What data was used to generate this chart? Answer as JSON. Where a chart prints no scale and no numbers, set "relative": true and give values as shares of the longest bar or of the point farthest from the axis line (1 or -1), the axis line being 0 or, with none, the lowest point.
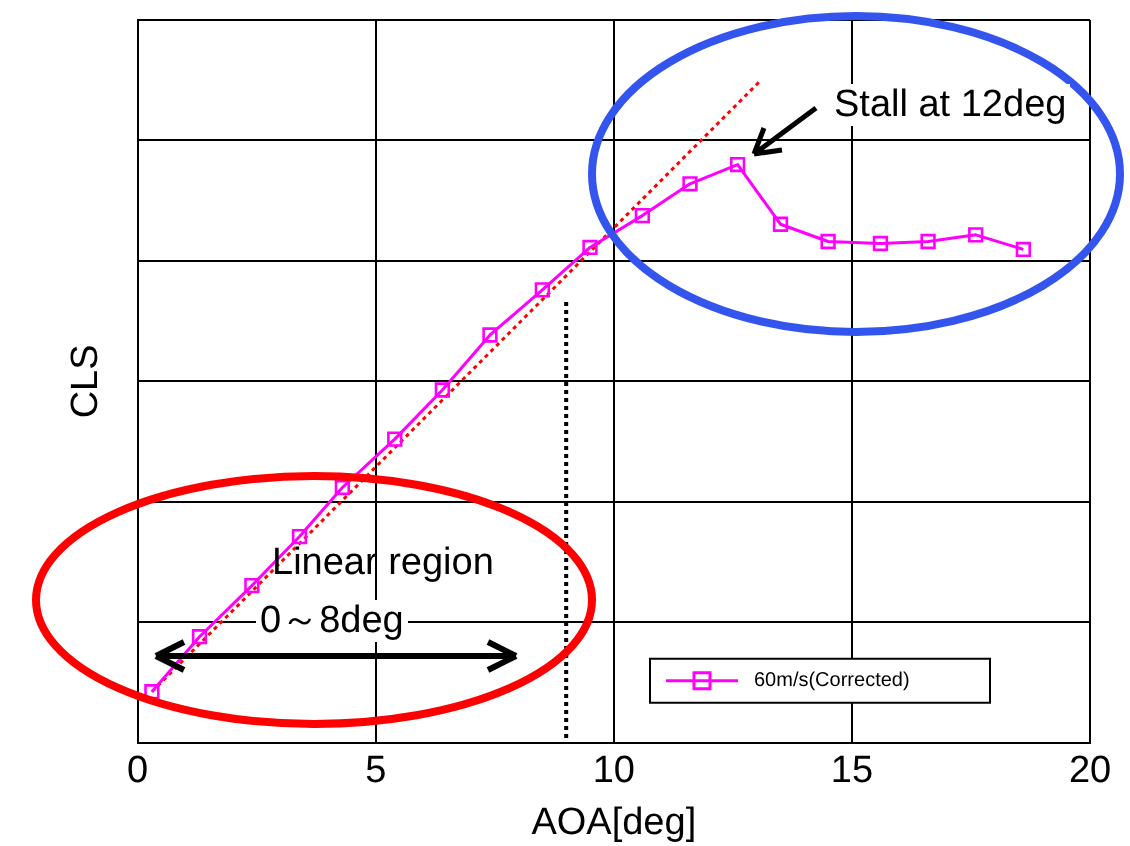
{
  "chart_data": {
    "type": "line",
    "relative": true,
    "xlabel": "AOA[deg]",
    "ylabel": "CLS",
    "xlim": [
      0,
      20
    ],
    "xticks": [
      0,
      5,
      10,
      15,
      20
    ],
    "grid": true,
    "legend": "bottom right",
    "series": [
      {
        "name": "60m/s(Corrected)",
        "color": "#ff00ff",
        "marker": "square",
        "line_style": "solid",
        "x": [
          0.3,
          1.3,
          2.4,
          3.4,
          4.3,
          5.4,
          6.4,
          7.4,
          8.5,
          9.5,
          10.6,
          11.6,
          12.6,
          13.5,
          14.5,
          15.6,
          16.6,
          17.6,
          18.6
        ],
        "values": [
          0.077,
          0.16,
          0.237,
          0.311,
          0.385,
          0.458,
          0.532,
          0.615,
          0.683,
          0.747,
          0.795,
          0.843,
          0.872,
          0.782,
          0.756,
          0.753,
          0.756,
          0.766,
          0.744
        ]
      },
      {
        "type": "line",
        "color": "#ff0000",
        "marker": "none",
        "line_style": "dotted",
        "x": [
          0.3,
          13.1
        ],
        "values": [
          0.077,
          1
        ]
      }
    ],
    "ref_lines": [
      {
        "axis": "x",
        "value": 9,
        "color": "#000000",
        "line_style": "dotted"
      }
    ],
    "annotations": [
      "Stall at 12deg",
      "Linear region",
      "0～8deg"
    ]
  }
}
